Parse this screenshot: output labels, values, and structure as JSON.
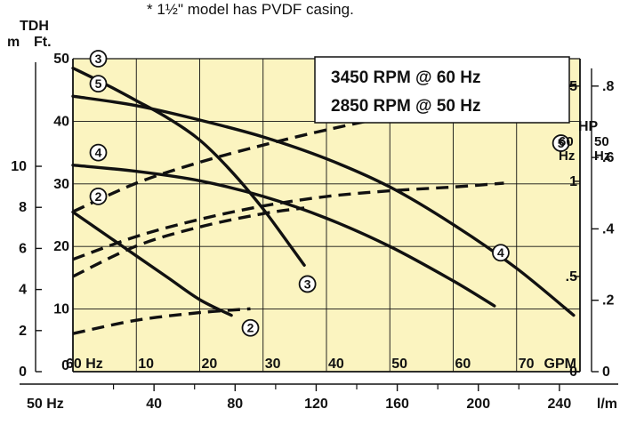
{
  "chart_data": {
    "type": "line",
    "note": "*  1½\" model has PVDF casing.",
    "rpm_60": "3450 RPM @ 60 Hz",
    "rpm_50": "2850 RPM @ 50 Hz",
    "left_axis_title": "TDH",
    "left_unit_m": "m",
    "left_unit_ft": "Ft.",
    "hp_title": "HP",
    "hp_60hz_label": "60\nHz",
    "hp_50hz_label": "50\nHz",
    "ft_ticks": [
      {
        "v": 0,
        "t": "0"
      },
      {
        "v": 10,
        "t": "10"
      },
      {
        "v": 20,
        "t": "20"
      },
      {
        "v": 30,
        "t": "30"
      },
      {
        "v": 40,
        "t": "40"
      },
      {
        "v": 50,
        "t": "50"
      }
    ],
    "m_ticks": [
      {
        "v": 0,
        "t": "0"
      },
      {
        "v": 2,
        "t": "2"
      },
      {
        "v": 4,
        "t": "4"
      },
      {
        "v": 6,
        "t": "6"
      },
      {
        "v": 8,
        "t": "8"
      },
      {
        "v": 10,
        "t": "10"
      }
    ],
    "hp60_ticks": [
      {
        "v": 0,
        "t": "0"
      },
      {
        "v": 0.5,
        "t": ".5"
      },
      {
        "v": 1,
        "t": "1"
      },
      {
        "v": 1.5,
        "t": "1.5"
      }
    ],
    "hp50_ticks": [
      {
        "v": 0,
        "t": "0"
      },
      {
        "v": 0.2,
        "t": ".2"
      },
      {
        "v": 0.4,
        "t": ".4"
      },
      {
        "v": 0.6,
        "t": ".6"
      },
      {
        "v": 0.8,
        "t": ".8"
      }
    ],
    "gpm_ticks": [
      {
        "v": 10,
        "t": "10"
      },
      {
        "v": 20,
        "t": "20"
      },
      {
        "v": 30,
        "t": "30"
      },
      {
        "v": 40,
        "t": "40"
      },
      {
        "v": 50,
        "t": "50"
      },
      {
        "v": 60,
        "t": "60"
      },
      {
        "v": 70,
        "t": "70"
      }
    ],
    "gpm_prefix": "60  Hz",
    "gpm_unit": "GPM",
    "lm_ticks": [
      {
        "v": 40,
        "t": "40"
      },
      {
        "v": 80,
        "t": "80"
      },
      {
        "v": 120,
        "t": "120"
      },
      {
        "v": 160,
        "t": "160"
      },
      {
        "v": 200,
        "t": "200"
      },
      {
        "v": 240,
        "t": "240"
      }
    ],
    "lm_prefix": "50  Hz",
    "lm_unit": "l/m",
    "xlim_gpm": [
      0,
      80
    ],
    "ylim_ft": [
      0,
      50
    ],
    "hp60_max": 1.57,
    "head_curves": [
      {
        "model": "3",
        "gpm": [
          0,
          5,
          10,
          15,
          20,
          25,
          30,
          34,
          36.5
        ],
        "ft": [
          48.5,
          46,
          43.3,
          40.5,
          37,
          32,
          26,
          20.5,
          17
        ]
      },
      {
        "model": "5",
        "gpm": [
          0,
          10,
          20,
          30,
          40,
          50,
          60,
          70,
          79
        ],
        "ft": [
          44,
          42.5,
          40.2,
          37.5,
          34,
          29.5,
          23.5,
          16.5,
          9
        ]
      },
      {
        "model": "4",
        "gpm": [
          0,
          10,
          20,
          30,
          40,
          50,
          60,
          66.5
        ],
        "ft": [
          33,
          32,
          30.5,
          28,
          24.5,
          20,
          14.5,
          10.5
        ]
      },
      {
        "model": "2",
        "gpm": [
          0,
          5,
          10,
          15,
          20,
          25
        ],
        "ft": [
          25.5,
          22,
          18.5,
          15,
          11.5,
          9
        ]
      }
    ],
    "hp_curves": [
      {
        "model": "5",
        "gpm": [
          0,
          10,
          20,
          30,
          40,
          50,
          60,
          70,
          80
        ],
        "hp60": [
          0.84,
          0.99,
          1.1,
          1.19,
          1.27,
          1.34,
          1.4,
          1.46,
          1.51
        ]
      },
      {
        "model": "4",
        "gpm": [
          0,
          10,
          20,
          30,
          40,
          50,
          60,
          68
        ],
        "hp60": [
          0.59,
          0.71,
          0.8,
          0.87,
          0.92,
          0.95,
          0.97,
          0.99
        ]
      },
      {
        "model": "3",
        "gpm": [
          0,
          10,
          20,
          30,
          36.5
        ],
        "hp60": [
          0.5,
          0.66,
          0.76,
          0.83,
          0.86
        ]
      },
      {
        "model": "2",
        "gpm": [
          0,
          10,
          20,
          28
        ],
        "hp60": [
          0.2,
          0.27,
          0.31,
          0.33
        ]
      }
    ],
    "markers": [
      {
        "label": "3",
        "gpm": 4,
        "ft": 50
      },
      {
        "label": "5",
        "gpm": 4,
        "ft": 46
      },
      {
        "label": "4",
        "gpm": 4,
        "ft": 35
      },
      {
        "label": "2",
        "gpm": 4,
        "ft": 28
      },
      {
        "label": "3",
        "gpm": 37,
        "ft": 14
      },
      {
        "label": "4",
        "gpm": 67.5,
        "ft": 19
      },
      {
        "label": "5",
        "gpm": 77,
        "ft": 36.5
      },
      {
        "label": "2",
        "gpm": 28,
        "ft": 7
      }
    ],
    "colors": {
      "plot_bg": "#fbf4c0",
      "line": "#111111",
      "grid": "#111111"
    }
  }
}
